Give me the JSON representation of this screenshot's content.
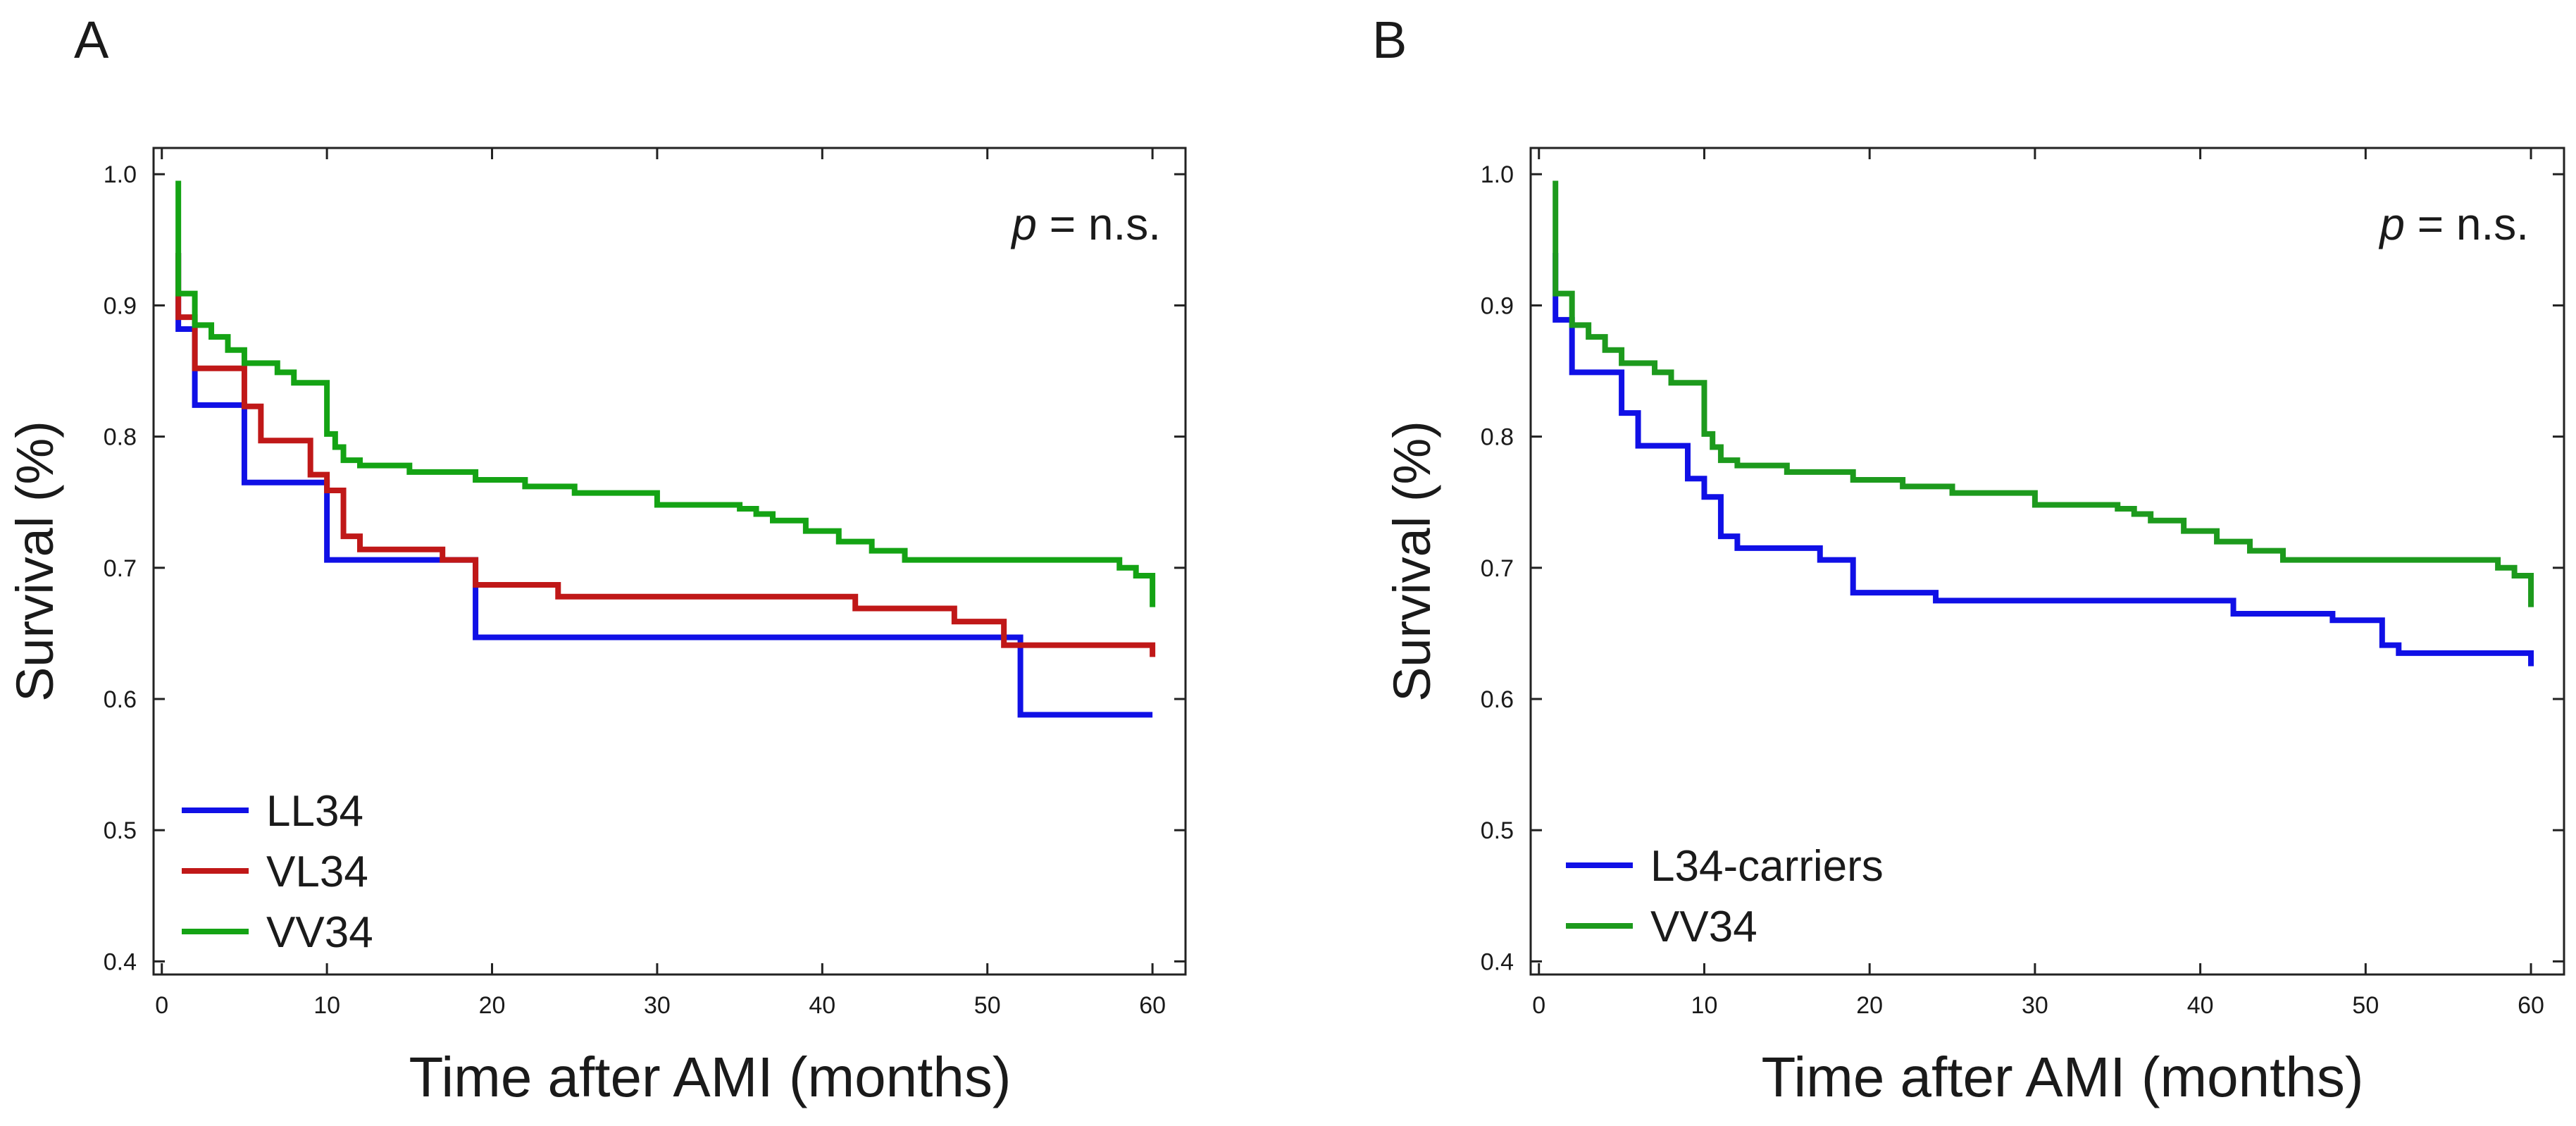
{
  "chart_data": [
    {
      "type": "line",
      "panel_label": "A",
      "ylabel": "Survival (%)",
      "xlabel": "Time after AMI (months)",
      "xlim": [
        -0.5,
        62
      ],
      "ylim": [
        0.39,
        1.02
      ],
      "xticks": [
        0,
        10,
        20,
        30,
        40,
        50,
        60
      ],
      "yticks": [
        0.4,
        0.5,
        0.6,
        0.7,
        0.8,
        0.9,
        1.0
      ],
      "xtick_labels": [
        "0",
        "10",
        "20",
        "30",
        "40",
        "50",
        "60"
      ],
      "ytick_labels": [
        "0.4",
        "0.5",
        "0.6",
        "0.7",
        "0.8",
        "0.9",
        "1.0"
      ],
      "annotation": {
        "italic": "p",
        "rest": " = n.s."
      },
      "legend_position": "bottom-left",
      "series": [
        {
          "name": "LL34",
          "color": "#1010e6",
          "x": [
            1,
            1,
            2,
            5,
            10,
            19,
            52,
            60
          ],
          "y": [
            0.94,
            0.882,
            0.824,
            0.765,
            0.706,
            0.647,
            0.588,
            0.588
          ]
        },
        {
          "name": "VL34",
          "color": "#c01818",
          "x": [
            1,
            1,
            2,
            5,
            6,
            9,
            10,
            11,
            12,
            17,
            19,
            24,
            42,
            48,
            51,
            60,
            60
          ],
          "y": [
            0.94,
            0.891,
            0.852,
            0.823,
            0.797,
            0.771,
            0.759,
            0.724,
            0.714,
            0.706,
            0.687,
            0.678,
            0.669,
            0.659,
            0.641,
            0.641,
            0.632
          ]
        },
        {
          "name": "VV34",
          "color": "#14a314",
          "x": [
            1,
            1,
            2,
            3,
            4,
            5,
            7,
            8,
            10,
            10.5,
            11,
            12,
            15,
            19,
            22,
            25,
            30,
            35,
            36,
            37,
            39,
            41,
            43,
            45,
            58,
            59,
            60,
            60
          ],
          "y": [
            0.995,
            0.909,
            0.885,
            0.876,
            0.866,
            0.856,
            0.849,
            0.841,
            0.802,
            0.792,
            0.782,
            0.778,
            0.773,
            0.767,
            0.762,
            0.757,
            0.748,
            0.745,
            0.741,
            0.736,
            0.728,
            0.72,
            0.713,
            0.706,
            0.7,
            0.694,
            0.69,
            0.67
          ]
        }
      ]
    },
    {
      "type": "line",
      "panel_label": "B",
      "ylabel": "Survival (%)",
      "xlabel": "Time after AMI (months)",
      "xlim": [
        -0.5,
        62
      ],
      "ylim": [
        0.39,
        1.02
      ],
      "xticks": [
        0,
        10,
        20,
        30,
        40,
        50,
        60
      ],
      "yticks": [
        0.4,
        0.5,
        0.6,
        0.7,
        0.8,
        0.9,
        1.0
      ],
      "xtick_labels": [
        "0",
        "10",
        "20",
        "30",
        "40",
        "50",
        "60"
      ],
      "ytick_labels": [
        "0.4",
        "0.5",
        "0.6",
        "0.7",
        "0.8",
        "0.9",
        "1.0"
      ],
      "annotation": {
        "italic": "p",
        "rest": " = n.s."
      },
      "legend_position": "bottom-left",
      "series": [
        {
          "name": "L34-carriers",
          "color": "#1010e6",
          "x": [
            1,
            1,
            2,
            5,
            6,
            9,
            10,
            11,
            12,
            17,
            19,
            24,
            42,
            48,
            51,
            52,
            60,
            60
          ],
          "y": [
            0.94,
            0.889,
            0.849,
            0.818,
            0.793,
            0.768,
            0.754,
            0.724,
            0.715,
            0.706,
            0.681,
            0.675,
            0.665,
            0.66,
            0.641,
            0.635,
            0.635,
            0.625
          ]
        },
        {
          "name": "VV34",
          "color": "#1d9a1d",
          "x": [
            1,
            1,
            2,
            3,
            4,
            5,
            7,
            8,
            10,
            10.5,
            11,
            12,
            15,
            19,
            22,
            25,
            30,
            35,
            36,
            37,
            39,
            41,
            43,
            45,
            58,
            59,
            60,
            60
          ],
          "y": [
            0.995,
            0.909,
            0.885,
            0.876,
            0.866,
            0.856,
            0.849,
            0.841,
            0.802,
            0.792,
            0.782,
            0.778,
            0.773,
            0.767,
            0.762,
            0.757,
            0.748,
            0.745,
            0.741,
            0.736,
            0.728,
            0.72,
            0.713,
            0.706,
            0.7,
            0.694,
            0.69,
            0.67
          ]
        }
      ]
    }
  ]
}
